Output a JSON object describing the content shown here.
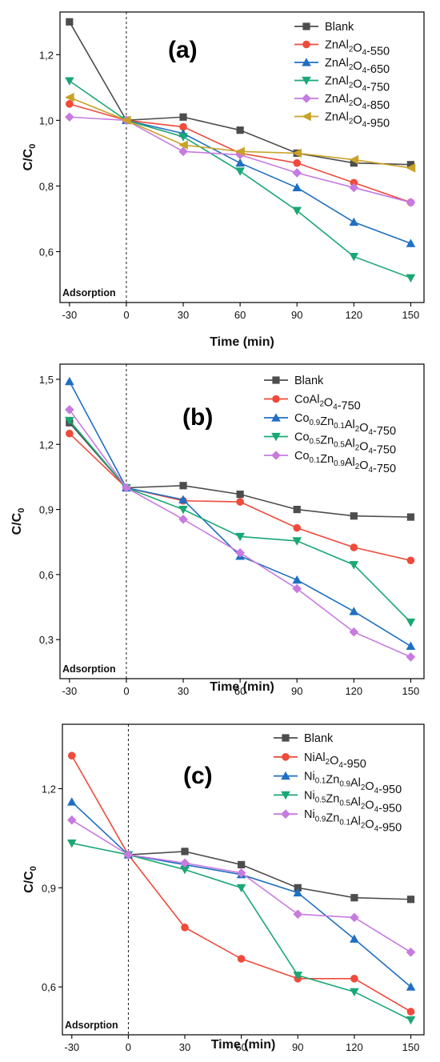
{
  "chart_data": [
    {
      "type": "line",
      "panel_label": "(a)",
      "xlabel": "Time (min)",
      "ylabel": "C/C0",
      "ylabel_main": "C/C",
      "ylabel_sub": "0",
      "x": [
        -30,
        0,
        30,
        60,
        90,
        120,
        150
      ],
      "x_tick_labels": [
        "-30",
        "0",
        "30",
        "60",
        "90",
        "120",
        "150"
      ],
      "xlim": [
        -35,
        157
      ],
      "ylim": [
        0.445,
        1.33
      ],
      "y_ticks": [
        0.6,
        0.8,
        1.0,
        1.2
      ],
      "y_tick_labels": [
        "0,6",
        "0,8",
        "1,0",
        "1,2"
      ],
      "annotation": "Adsorption",
      "legend_position": "top-right",
      "series": [
        {
          "name": "Blank",
          "name_parts": [
            {
              "t": "Blank",
              "s": "n"
            }
          ],
          "color": "#4d4d4d",
          "marker": "square",
          "values": [
            1.3,
            1.0,
            1.01,
            0.97,
            0.9,
            0.87,
            0.865
          ]
        },
        {
          "name": "ZnAl2O4-550",
          "name_parts": [
            {
              "t": "ZnAl",
              "s": "n"
            },
            {
              "t": "2",
              "s": "sub"
            },
            {
              "t": "O",
              "s": "n"
            },
            {
              "t": "4",
              "s": "sub"
            },
            {
              "t": "-550",
              "s": "n"
            }
          ],
          "color": "#f04a3a",
          "marker": "circle",
          "values": [
            1.05,
            1.0,
            0.98,
            0.9,
            0.87,
            0.81,
            0.75
          ]
        },
        {
          "name": "ZnAl2O4-650",
          "name_parts": [
            {
              "t": "ZnAl",
              "s": "n"
            },
            {
              "t": "2",
              "s": "sub"
            },
            {
              "t": "O",
              "s": "n"
            },
            {
              "t": "4",
              "s": "sub"
            },
            {
              "t": "-650",
              "s": "n"
            }
          ],
          "color": "#1f6fc2",
          "marker": "triangle-up",
          "values": [
            null,
            1.0,
            0.96,
            0.87,
            0.795,
            0.69,
            0.625
          ]
        },
        {
          "name": "ZnAl2O4-750",
          "name_parts": [
            {
              "t": "ZnAl",
              "s": "n"
            },
            {
              "t": "2",
              "s": "sub"
            },
            {
              "t": "O",
              "s": "n"
            },
            {
              "t": "4",
              "s": "sub"
            },
            {
              "t": "-750",
              "s": "n"
            }
          ],
          "color": "#1aa774",
          "marker": "triangle-down",
          "values": [
            1.12,
            1.0,
            0.95,
            0.845,
            0.725,
            0.585,
            0.52
          ]
        },
        {
          "name": "ZnAl2O4-850",
          "name_parts": [
            {
              "t": "ZnAl",
              "s": "n"
            },
            {
              "t": "2",
              "s": "sub"
            },
            {
              "t": "O",
              "s": "n"
            },
            {
              "t": "4",
              "s": "sub"
            },
            {
              "t": "-850",
              "s": "n"
            }
          ],
          "color": "#c77ae0",
          "marker": "diamond",
          "values": [
            1.01,
            1.0,
            0.905,
            0.895,
            0.84,
            0.795,
            0.75
          ]
        },
        {
          "name": "ZnAl2O4-950",
          "name_parts": [
            {
              "t": "ZnAl",
              "s": "n"
            },
            {
              "t": "2",
              "s": "sub"
            },
            {
              "t": "O",
              "s": "n"
            },
            {
              "t": "4",
              "s": "sub"
            },
            {
              "t": "-950",
              "s": "n"
            }
          ],
          "color": "#c9a227",
          "marker": "triangle-left",
          "values": [
            1.07,
            1.0,
            0.925,
            0.905,
            0.9,
            0.88,
            0.855
          ]
        }
      ]
    },
    {
      "type": "line",
      "panel_label": "(b)",
      "xlabel": "Time (min)",
      "ylabel": "C/C0",
      "ylabel_main": "C/C",
      "ylabel_sub": "0",
      "x": [
        -30,
        0,
        30,
        60,
        90,
        120,
        150
      ],
      "x_tick_labels": [
        "-30",
        "0",
        "30",
        "60",
        "90",
        "120",
        "150"
      ],
      "xlim": [
        -35,
        157
      ],
      "ylim": [
        0.12,
        1.57
      ],
      "y_ticks": [
        0.3,
        0.6,
        0.9,
        1.2,
        1.5
      ],
      "y_tick_labels": [
        "0,3",
        "0,6",
        "0,9",
        "1,2",
        "1,5"
      ],
      "annotation": "Adsorption",
      "legend_position": "top-right",
      "series": [
        {
          "name": "Blank",
          "name_parts": [
            {
              "t": "Blank",
              "s": "n"
            }
          ],
          "color": "#4d4d4d",
          "marker": "square",
          "values": [
            1.3,
            1.0,
            1.01,
            0.97,
            0.9,
            0.87,
            0.865
          ]
        },
        {
          "name": "CoAl2O4-750",
          "name_parts": [
            {
              "t": "CoAl",
              "s": "n"
            },
            {
              "t": "2",
              "s": "sub"
            },
            {
              "t": "O",
              "s": "n"
            },
            {
              "t": "4",
              "s": "sub"
            },
            {
              "t": "-750",
              "s": "n"
            }
          ],
          "color": "#f04a3a",
          "marker": "circle",
          "values": [
            1.25,
            1.0,
            0.94,
            0.935,
            0.815,
            0.725,
            0.665
          ]
        },
        {
          "name": "Co0.9Zn0.1Al2O4-750",
          "name_parts": [
            {
              "t": "Co",
              "s": "n"
            },
            {
              "t": "0.9",
              "s": "sub"
            },
            {
              "t": "Zn",
              "s": "n"
            },
            {
              "t": "0.1",
              "s": "sub"
            },
            {
              "t": "Al",
              "s": "n"
            },
            {
              "t": "2",
              "s": "sub"
            },
            {
              "t": "O",
              "s": "n"
            },
            {
              "t": "4",
              "s": "sub"
            },
            {
              "t": "-750",
              "s": "n"
            }
          ],
          "color": "#1f6fc2",
          "marker": "triangle-up",
          "values": [
            1.49,
            1.0,
            0.945,
            0.685,
            0.575,
            0.43,
            0.27
          ]
        },
        {
          "name": "Co0.5Zn0.5Al2O4-750",
          "name_parts": [
            {
              "t": "Co",
              "s": "n"
            },
            {
              "t": "0.5",
              "s": "sub"
            },
            {
              "t": "Zn",
              "s": "n"
            },
            {
              "t": "0.5",
              "s": "sub"
            },
            {
              "t": "Al",
              "s": "n"
            },
            {
              "t": "2",
              "s": "sub"
            },
            {
              "t": "O",
              "s": "n"
            },
            {
              "t": "4",
              "s": "sub"
            },
            {
              "t": "-750",
              "s": "n"
            }
          ],
          "color": "#1aa774",
          "marker": "triangle-down",
          "values": [
            1.31,
            1.0,
            0.9,
            0.775,
            0.755,
            0.645,
            0.38
          ]
        },
        {
          "name": "Co0.1Zn0.9Al2O4-750",
          "name_parts": [
            {
              "t": "Co",
              "s": "n"
            },
            {
              "t": "0.1",
              "s": "sub"
            },
            {
              "t": "Zn",
              "s": "n"
            },
            {
              "t": "0.9",
              "s": "sub"
            },
            {
              "t": "Al",
              "s": "n"
            },
            {
              "t": "2",
              "s": "sub"
            },
            {
              "t": "O",
              "s": "n"
            },
            {
              "t": "4",
              "s": "sub"
            },
            {
              "t": "-750",
              "s": "n"
            }
          ],
          "color": "#c77ae0",
          "marker": "diamond",
          "values": [
            1.36,
            1.0,
            0.855,
            0.7,
            0.535,
            0.335,
            0.22
          ]
        }
      ]
    },
    {
      "type": "line",
      "panel_label": "(c)",
      "xlabel": "Time (min)",
      "ylabel": "C/C0",
      "ylabel_main": "C/C",
      "ylabel_sub": "0",
      "x": [
        -30,
        0,
        30,
        60,
        90,
        120,
        150
      ],
      "x_tick_labels": [
        "-30",
        "0",
        "30",
        "60",
        "90",
        "120",
        "150"
      ],
      "xlim": [
        -35,
        157
      ],
      "ylim": [
        0.455,
        1.395
      ],
      "y_ticks": [
        0.6,
        0.9,
        1.2
      ],
      "y_tick_labels": [
        "0,6",
        "0,9",
        "1,2"
      ],
      "annotation": "Adsorption",
      "legend_position": "top-right",
      "series": [
        {
          "name": "Blank",
          "name_parts": [
            {
              "t": "Blank",
              "s": "n"
            }
          ],
          "color": "#4d4d4d",
          "marker": "square",
          "values": [
            null,
            1.0,
            1.01,
            0.97,
            0.9,
            0.87,
            0.865
          ]
        },
        {
          "name": "NiAl2O4-950",
          "name_parts": [
            {
              "t": "NiAl",
              "s": "n"
            },
            {
              "t": "2",
              "s": "sub"
            },
            {
              "t": "O",
              "s": "n"
            },
            {
              "t": "4",
              "s": "sub"
            },
            {
              "t": "-950",
              "s": "n"
            }
          ],
          "color": "#f04a3a",
          "marker": "circle",
          "values": [
            1.3,
            1.0,
            0.78,
            0.685,
            0.625,
            0.625,
            0.525
          ]
        },
        {
          "name": "Ni0.1Zn0.9Al2O4-950",
          "name_parts": [
            {
              "t": "Ni",
              "s": "n"
            },
            {
              "t": "0.1",
              "s": "sub"
            },
            {
              "t": "Zn",
              "s": "n"
            },
            {
              "t": "0.9",
              "s": "sub"
            },
            {
              "t": "Al",
              "s": "n"
            },
            {
              "t": "2",
              "s": "sub"
            },
            {
              "t": "O",
              "s": "n"
            },
            {
              "t": "4",
              "s": "sub"
            },
            {
              "t": "-950",
              "s": "n"
            }
          ],
          "color": "#1f6fc2",
          "marker": "triangle-up",
          "values": [
            1.16,
            1.0,
            0.97,
            0.94,
            0.885,
            0.745,
            0.6
          ]
        },
        {
          "name": "Ni0.5Zn0.5Al2O4-950",
          "name_parts": [
            {
              "t": "Ni",
              "s": "n"
            },
            {
              "t": "0.5",
              "s": "sub"
            },
            {
              "t": "Zn",
              "s": "n"
            },
            {
              "t": "0.5",
              "s": "sub"
            },
            {
              "t": "Al",
              "s": "n"
            },
            {
              "t": "2",
              "s": "sub"
            },
            {
              "t": "O",
              "s": "n"
            },
            {
              "t": "4",
              "s": "sub"
            },
            {
              "t": "-950",
              "s": "n"
            }
          ],
          "color": "#1aa774",
          "marker": "triangle-down",
          "values": [
            1.035,
            1.0,
            0.955,
            0.9,
            0.635,
            0.585,
            0.5
          ]
        },
        {
          "name": "Ni0.9Zn0.1Al2O4-950",
          "name_parts": [
            {
              "t": "Ni",
              "s": "n"
            },
            {
              "t": "0.9",
              "s": "sub"
            },
            {
              "t": "Zn",
              "s": "n"
            },
            {
              "t": "0.1",
              "s": "sub"
            },
            {
              "t": "Al",
              "s": "n"
            },
            {
              "t": "2",
              "s": "sub"
            },
            {
              "t": "O",
              "s": "n"
            },
            {
              "t": "4",
              "s": "sub"
            },
            {
              "t": "-950",
              "s": "n"
            }
          ],
          "color": "#c77ae0",
          "marker": "diamond",
          "values": [
            1.105,
            1.0,
            0.975,
            0.945,
            0.82,
            0.81,
            0.705
          ]
        }
      ]
    }
  ]
}
